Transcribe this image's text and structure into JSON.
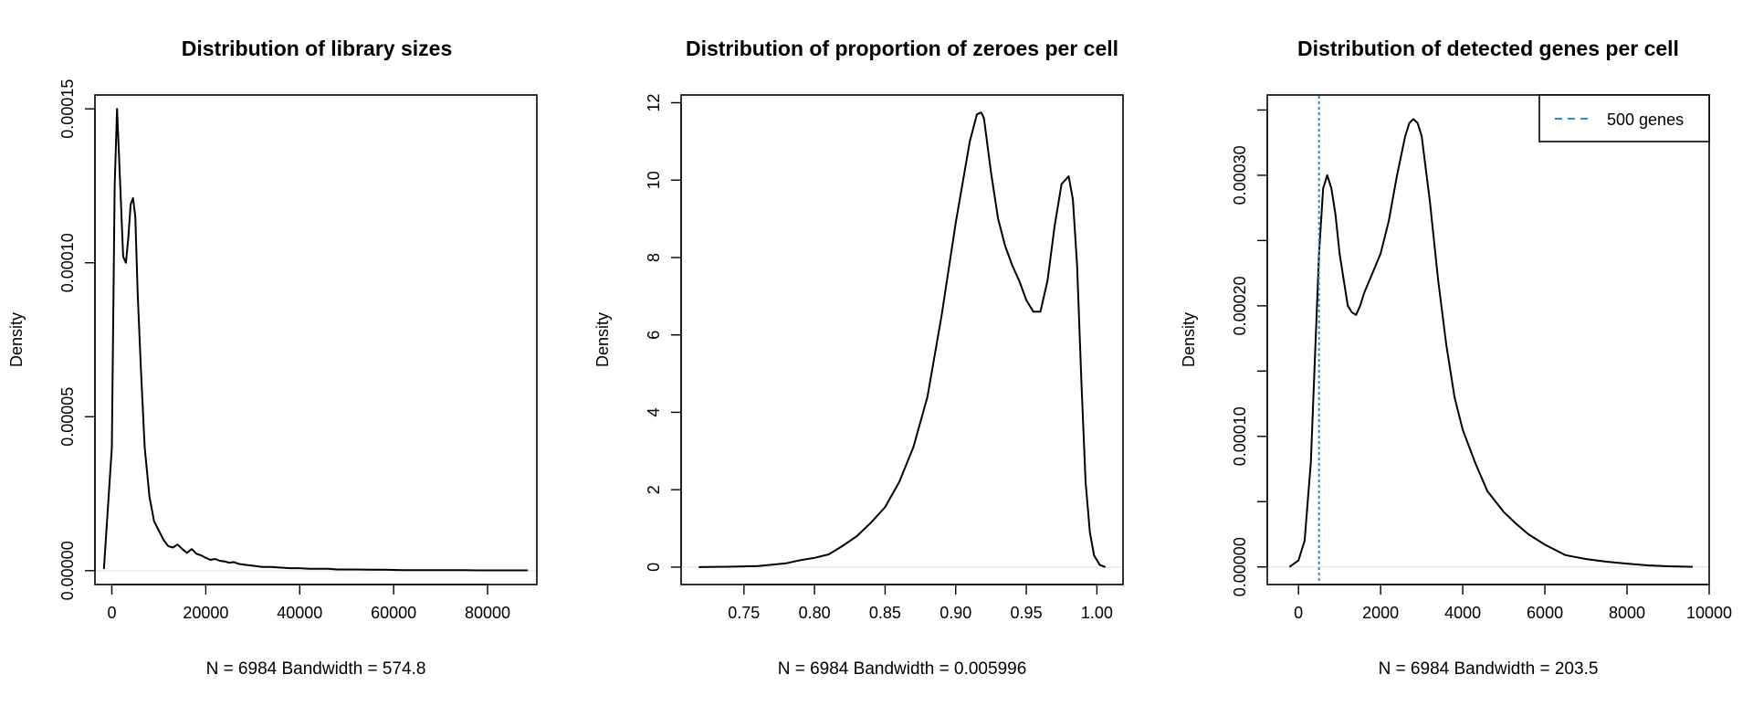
{
  "chart_data": [
    {
      "type": "line",
      "title": "Distribution of library sizes",
      "xlabel": "N = 6984   Bandwidth = 574.8",
      "ylabel": "Density",
      "xlim": [
        -3600,
        90500
      ],
      "ylim": [
        -4.5e-06,
        0.0001545
      ],
      "xticks": [
        0,
        20000,
        40000,
        60000,
        80000
      ],
      "xtick_labels": [
        "0",
        "20000",
        "40000",
        "60000",
        "80000"
      ],
      "yticks": [
        0,
        5e-05,
        0.0001,
        0.00015
      ],
      "ytick_labels": [
        "0.00000",
        "0.00005",
        "0.00010",
        "0.00015"
      ],
      "baseline": true,
      "series": [
        {
          "name": "density",
          "x": [
            -1700,
            0,
            600,
            1100,
            1700,
            2400,
            3000,
            3500,
            4000,
            4500,
            5000,
            5500,
            6200,
            7000,
            8000,
            9000,
            10000,
            11000,
            12000,
            13000,
            14000,
            15000,
            16000,
            17000,
            18000,
            19000,
            20000,
            21000,
            22000,
            23000,
            24000,
            25000,
            26000,
            27000,
            28000,
            29000,
            30000,
            32000,
            34000,
            36000,
            38000,
            40000,
            42000,
            44000,
            46000,
            48000,
            50000,
            52000,
            55000,
            58000,
            62000,
            66000,
            70000,
            74000,
            78000,
            82000,
            86000,
            88600
          ],
          "y": [
            5e-07,
            4e-05,
            0.000125,
            0.00015,
            0.000128,
            0.000102,
            0.0001,
            0.000108,
            0.000119,
            0.000121,
            0.000115,
            9e-05,
            6.5e-05,
            4e-05,
            2.4e-05,
            1.6e-05,
            1.3e-05,
            1e-05,
            8e-06,
            7.5e-06,
            8.5e-06,
            7e-06,
            5.8e-06,
            7e-06,
            5.5e-06,
            5e-06,
            4.2e-06,
            3.5e-06,
            3.8e-06,
            3.2e-06,
            3e-06,
            2.6e-06,
            2.8e-06,
            2.2e-06,
            2e-06,
            1.8e-06,
            1.6e-06,
            1.2e-06,
            1.2e-06,
            1e-06,
            8e-07,
            8e-07,
            6e-07,
            6e-07,
            6e-07,
            4e-07,
            4e-07,
            4e-07,
            3e-07,
            3e-07,
            2e-07,
            2e-07,
            2e-07,
            2e-07,
            1e-07,
            1e-07,
            1e-07,
            1e-07
          ],
          "color": "#000000"
        }
      ]
    },
    {
      "type": "line",
      "title": "Distribution of proportion of zeroes per cell",
      "xlabel": "N = 6984   Bandwidth = 0.005996",
      "ylabel": "Density",
      "xlim": [
        0.7055,
        1.0185
      ],
      "ylim": [
        -0.45,
        12.2
      ],
      "xticks": [
        0.75,
        0.8,
        0.85,
        0.9,
        0.95,
        1.0
      ],
      "xtick_labels": [
        "0.75",
        "0.80",
        "0.85",
        "0.90",
        "0.95",
        "1.00"
      ],
      "yticks": [
        0,
        2,
        4,
        6,
        8,
        10,
        12
      ],
      "ytick_labels": [
        "0",
        "2",
        "4",
        "6",
        "8",
        "10",
        "12"
      ],
      "baseline": true,
      "series": [
        {
          "name": "density",
          "x": [
            0.718,
            0.74,
            0.76,
            0.78,
            0.79,
            0.8,
            0.81,
            0.82,
            0.83,
            0.84,
            0.85,
            0.86,
            0.87,
            0.88,
            0.89,
            0.9,
            0.91,
            0.915,
            0.918,
            0.92,
            0.925,
            0.93,
            0.935,
            0.94,
            0.945,
            0.95,
            0.955,
            0.96,
            0.965,
            0.97,
            0.975,
            0.98,
            0.983,
            0.986,
            0.989,
            0.992,
            0.995,
            0.998,
            1.002,
            1.006
          ],
          "y": [
            0.0,
            0.01,
            0.03,
            0.1,
            0.18,
            0.24,
            0.33,
            0.55,
            0.8,
            1.15,
            1.55,
            2.2,
            3.1,
            4.4,
            6.5,
            8.9,
            11.0,
            11.7,
            11.75,
            11.6,
            10.2,
            9.0,
            8.3,
            7.8,
            7.4,
            6.9,
            6.6,
            6.6,
            7.4,
            8.8,
            9.9,
            10.1,
            9.5,
            7.8,
            4.8,
            2.2,
            0.9,
            0.3,
            0.06,
            0.0
          ],
          "color": "#000000"
        }
      ]
    },
    {
      "type": "line",
      "title": "Distribution of detected genes per cell",
      "xlabel": "N = 6984   Bandwidth = 203.5",
      "ylabel": "Density",
      "xlim": [
        -760,
        10000
      ],
      "ylim": [
        -1.35e-05,
        0.0003615
      ],
      "xticks": [
        0,
        2000,
        4000,
        6000,
        8000,
        10000
      ],
      "xtick_labels": [
        "0",
        "2000",
        "4000",
        "6000",
        "8000",
        "10000"
      ],
      "yticks": [
        0,
        0.0001,
        0.0002,
        0.0003
      ],
      "ytick_labels": [
        "0.00000",
        "0.00010",
        "0.00020",
        "0.00030"
      ],
      "minor_yticks": [
        5e-05,
        0.00015,
        0.00025,
        0.00035
      ],
      "baseline": true,
      "series": [
        {
          "name": "density",
          "x": [
            -220,
            0,
            150,
            300,
            400,
            500,
            600,
            700,
            800,
            900,
            1000,
            1100,
            1200,
            1300,
            1400,
            1500,
            1600,
            1800,
            2000,
            2200,
            2400,
            2600,
            2700,
            2800,
            2900,
            3000,
            3200,
            3400,
            3600,
            3800,
            4000,
            4300,
            4600,
            5000,
            5300,
            5600,
            6000,
            6500,
            7000,
            7500,
            8000,
            8500,
            9000,
            9600
          ],
          "y": [
            0.0,
            5e-06,
            2e-05,
            8e-05,
            0.00016,
            0.00024,
            0.00029,
            0.0003,
            0.00029,
            0.00027,
            0.00024,
            0.00022,
            0.0002,
            0.000195,
            0.000193,
            0.0002,
            0.00021,
            0.000225,
            0.00024,
            0.000265,
            0.0003,
            0.00033,
            0.00034,
            0.000343,
            0.00034,
            0.00033,
            0.00028,
            0.00022,
            0.00017,
            0.00013,
            0.000105,
            8e-05,
            5.8e-05,
            4.2e-05,
            3.3e-05,
            2.5e-05,
            1.7e-05,
            9e-06,
            6e-06,
            4e-06,
            2.5e-06,
            1.2e-06,
            5e-07,
            1e-07
          ],
          "color": "#000000"
        }
      ],
      "reference_line": {
        "x": 500,
        "color": "#2b8cd8",
        "style": "dashed"
      },
      "legend": {
        "label": "500 genes",
        "position": "top-right",
        "color": "#2b8cd8",
        "style": "dashed"
      }
    }
  ]
}
